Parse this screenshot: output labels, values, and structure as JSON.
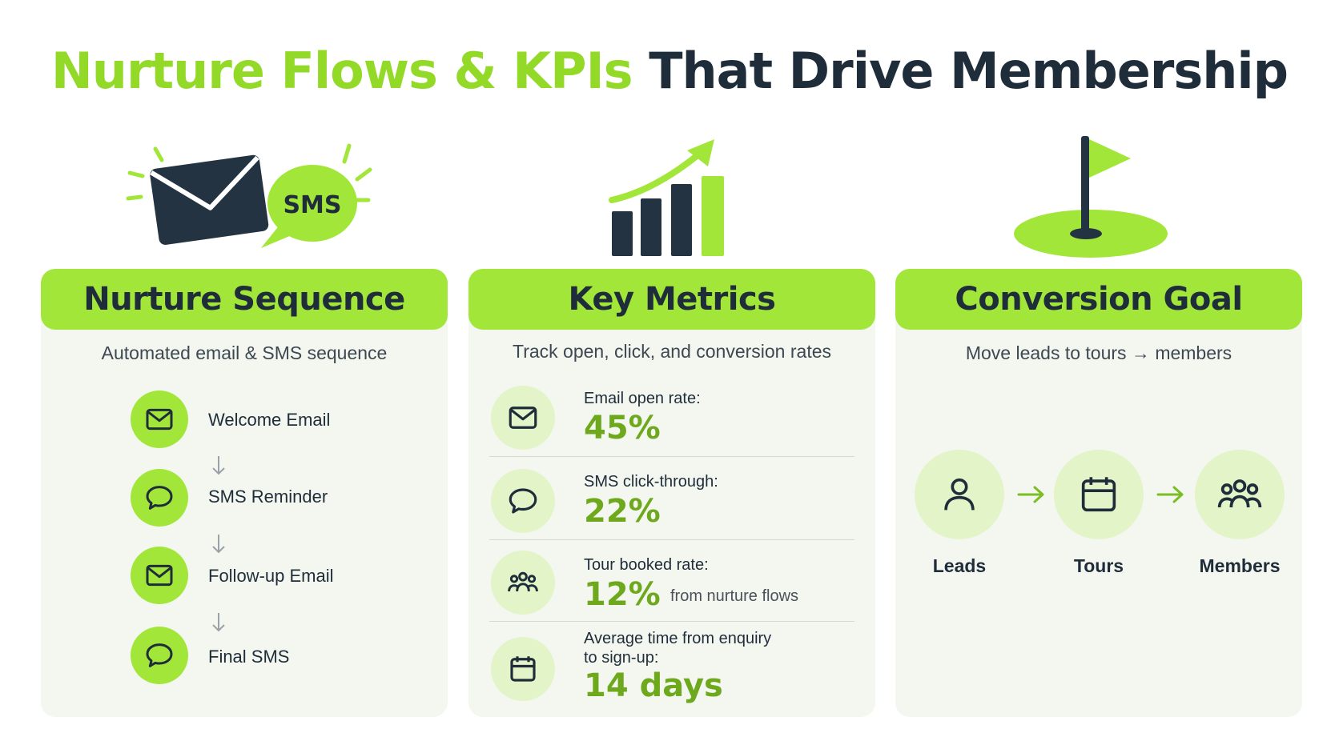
{
  "title": {
    "part_green": "Nurture Flows & KPIs",
    "part_dark": "That Drive Membership"
  },
  "hero": {
    "sms_badge": "SMS"
  },
  "colors": {
    "accent": "#a2e63a",
    "accent_dark": "#6ea81c",
    "navy": "#1f2d3a",
    "card_bg": "#f3f7f0",
    "pale_circle": "#e3f4c9"
  },
  "nurture": {
    "heading": "Nurture Sequence",
    "subtitle": "Automated email & SMS sequence",
    "steps": [
      {
        "label": "Welcome Email",
        "icon": "envelope-icon"
      },
      {
        "label": "SMS Reminder",
        "icon": "chat-bubble-icon"
      },
      {
        "label": "Follow-up Email",
        "icon": "envelope-icon"
      },
      {
        "label": "Final SMS",
        "icon": "chat-bubble-icon"
      }
    ]
  },
  "metrics": {
    "heading": "Key Metrics",
    "subtitle": "Track open, click, and conversion rates",
    "items": [
      {
        "label": "Email open rate:",
        "value": "45%",
        "note": "",
        "icon": "envelope-icon"
      },
      {
        "label": "SMS click-through:",
        "value": "22%",
        "note": "",
        "icon": "chat-bubble-icon"
      },
      {
        "label": "Tour booked rate:",
        "value": "12%",
        "note": "from nurture flows",
        "icon": "people-group-icon"
      },
      {
        "label": "Average time from enquiry",
        "label2": "to sign-up:",
        "value": "14 days",
        "note": "",
        "icon": "calendar-icon"
      }
    ]
  },
  "goal": {
    "heading": "Conversion Goal",
    "subtitle": "Move leads to tours → members",
    "stages": [
      {
        "label": "Leads",
        "icon": "person-icon"
      },
      {
        "label": "Tours",
        "icon": "calendar-icon"
      },
      {
        "label": "Members",
        "icon": "people-group-icon"
      }
    ]
  }
}
